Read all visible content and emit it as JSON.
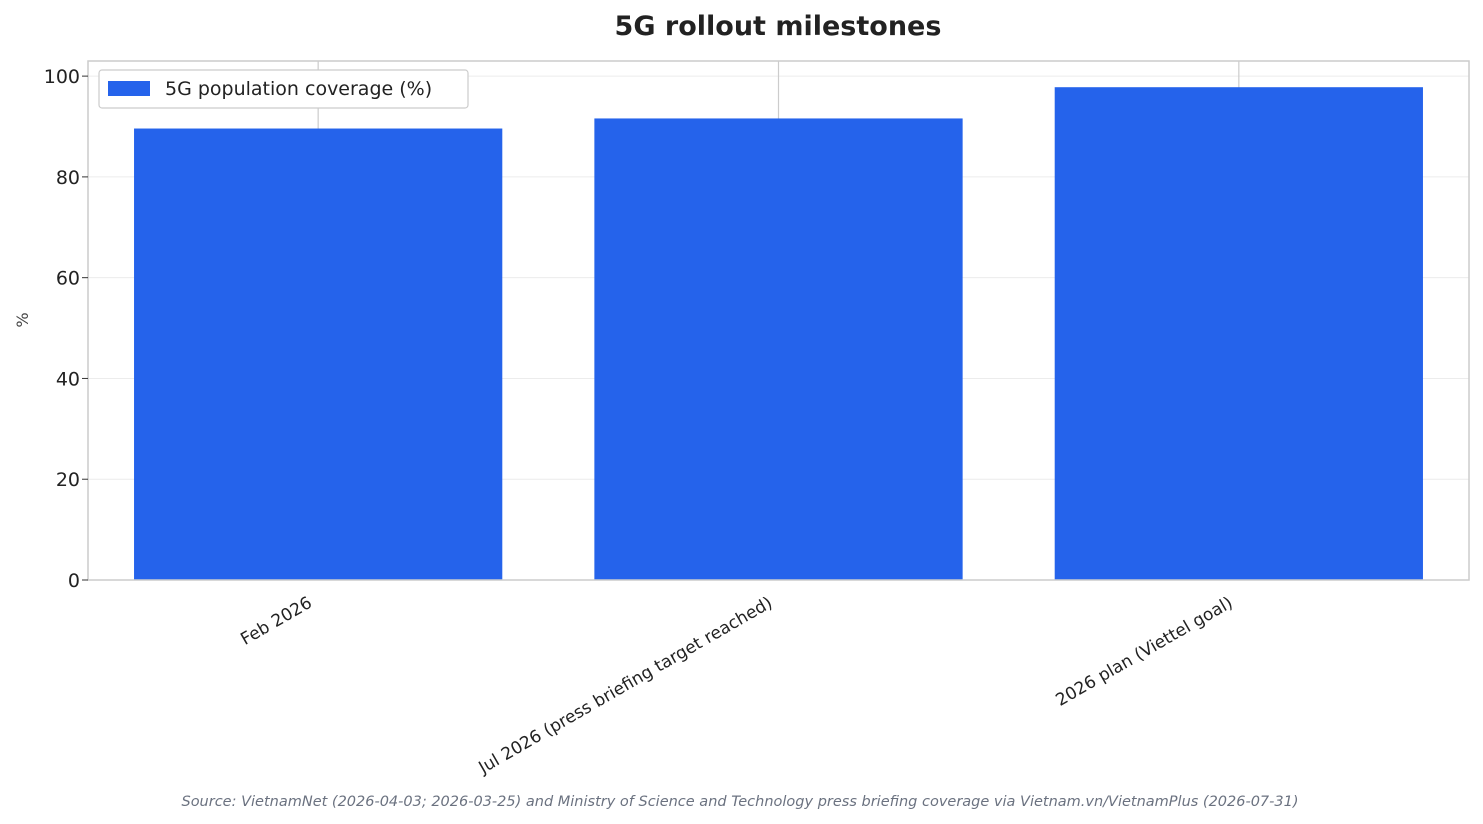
{
  "chart_data": {
    "type": "bar",
    "title": "5G rollout milestones",
    "xlabel": "",
    "ylabel": "%",
    "categories": [
      "Feb 2026",
      "Jul 2026 (press briefing target reached)",
      "2026 plan (Viettel goal)"
    ],
    "series": [
      {
        "name": "5G population coverage (%)",
        "values": [
          89.6,
          91.6,
          97.8
        ]
      }
    ],
    "yticks": [
      "0",
      "20",
      "40",
      "60",
      "80",
      "100"
    ],
    "ylim": [
      0,
      103
    ],
    "grid": true,
    "legend": "top-left",
    "bar_color": "#2563EB",
    "source": "Source: VietnamNet (2026-04-03; 2026-03-25) and Ministry of Science and Technology press briefing coverage via Vietnam.vn/VietnamPlus (2026-07-31)"
  }
}
